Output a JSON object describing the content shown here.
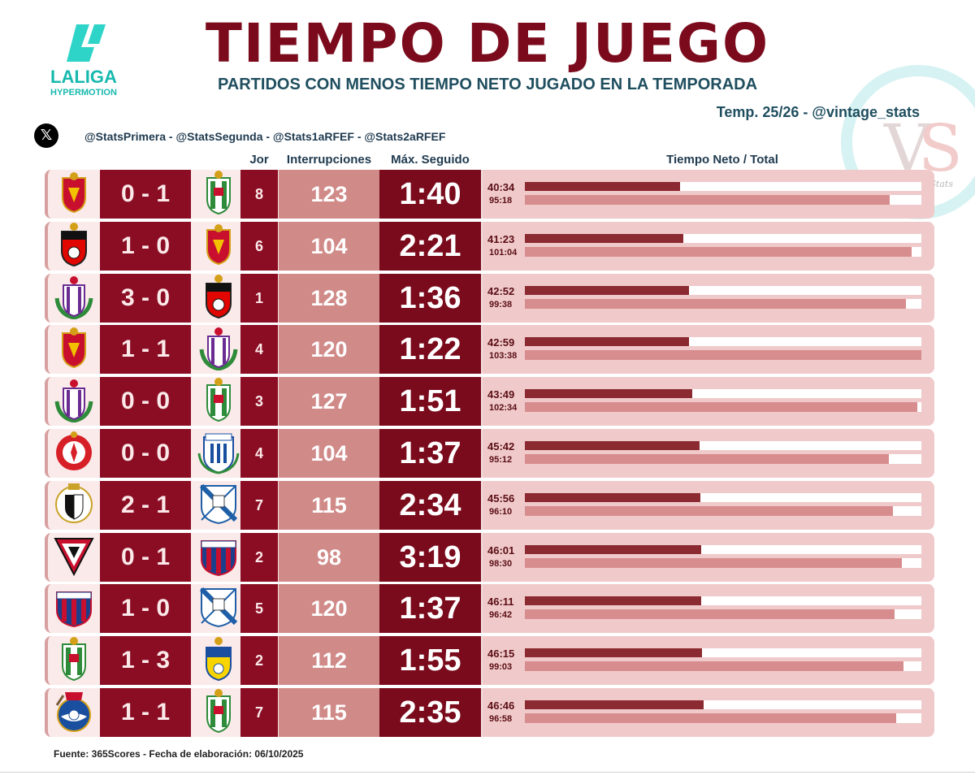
{
  "header": {
    "title": "TIEMPO DE JUEGO",
    "subtitle": "PARTIDOS CON MENOS TIEMPO NETO JUGADO EN LA TEMPORADA",
    "season": "Temp. 25/26 - @vintage_stats",
    "accounts": "@StatsPrimera - @StatsSegunda - @Stats1aRFEF - @Stats2aRFEF",
    "league_logo_text": "LALIGA",
    "league_logo_sub": "HYPERMOTION",
    "watermark_text": "Vintage.Stats"
  },
  "columns": {
    "jor": "Jor",
    "interrupciones": "Interrupciones",
    "max_seguido": "Máx. Seguido",
    "tiempo": "Tiempo Neto / Total"
  },
  "footer": "Fuente: 365Scores - Fecha de elaboración: 06/10/2025",
  "colors": {
    "primary": "#8b0d24",
    "accent": "#d08a88",
    "bar_net": "#8b2a30",
    "bar_total": "#d78d8d",
    "title": "#7b0b1c",
    "subtitle": "#1f4e5f"
  },
  "chart_data": {
    "type": "bar",
    "orientation": "horizontal",
    "series_labels": [
      "Tiempo Neto",
      "Total"
    ],
    "rows": [
      {
        "home_crest": "zaragoza-crest",
        "score": "0 - 1",
        "away_crest": "cordoba-crest",
        "jor": "8",
        "interrupciones": "123",
        "max_seguido": "1:40",
        "neto": "40:34",
        "total": "95:18",
        "neto_min": 40.57,
        "total_min": 95.3
      },
      {
        "home_crest": "ceuta-crest",
        "score": "1 - 0",
        "away_crest": "zaragoza-crest",
        "jor": "6",
        "interrupciones": "104",
        "max_seguido": "2:21",
        "neto": "41:23",
        "total": "101:04",
        "neto_min": 41.38,
        "total_min": 101.07
      },
      {
        "home_crest": "valladolid-crest",
        "score": "3 - 0",
        "away_crest": "ceuta-crest",
        "jor": "1",
        "interrupciones": "128",
        "max_seguido": "1:36",
        "neto": "42:52",
        "total": "99:38",
        "neto_min": 42.87,
        "total_min": 99.63
      },
      {
        "home_crest": "zaragoza-crest",
        "score": "1 - 1",
        "away_crest": "valladolid-crest",
        "jor": "4",
        "interrupciones": "120",
        "max_seguido": "1:22",
        "neto": "42:59",
        "total": "103:38",
        "neto_min": 42.98,
        "total_min": 103.63
      },
      {
        "home_crest": "valladolid-crest",
        "score": "0 - 0",
        "away_crest": "cordoba-crest",
        "jor": "3",
        "interrupciones": "127",
        "max_seguido": "1:51",
        "neto": "43:49",
        "total": "102:34",
        "neto_min": 43.82,
        "total_min": 102.57
      },
      {
        "home_crest": "leonesa-crest",
        "score": "0 - 0",
        "away_crest": "leganes-crest",
        "jor": "4",
        "interrupciones": "104",
        "max_seguido": "1:37",
        "neto": "45:42",
        "total": "95:12",
        "neto_min": 45.7,
        "total_min": 95.2
      },
      {
        "home_crest": "burgos-crest",
        "score": "2 - 1",
        "away_crest": "malaga-crest",
        "jor": "7",
        "interrupciones": "115",
        "max_seguido": "2:34",
        "neto": "45:56",
        "total": "96:10",
        "neto_min": 45.93,
        "total_min": 96.17
      },
      {
        "home_crest": "mirandes-crest",
        "score": "0 - 1",
        "away_crest": "huesca-crest",
        "jor": "2",
        "interrupciones": "98",
        "max_seguido": "3:19",
        "neto": "46:01",
        "total": "98:30",
        "neto_min": 46.02,
        "total_min": 98.5
      },
      {
        "home_crest": "huesca-crest",
        "score": "1 - 0",
        "away_crest": "malaga-crest",
        "jor": "5",
        "interrupciones": "120",
        "max_seguido": "1:37",
        "neto": "46:11",
        "total": "96:42",
        "neto_min": 46.18,
        "total_min": 96.7
      },
      {
        "home_crest": "cordoba-crest",
        "score": "1 - 3",
        "away_crest": "laspalmas-crest",
        "jor": "2",
        "interrupciones": "112",
        "max_seguido": "1:55",
        "neto": "46:15",
        "total": "99:03",
        "neto_min": 46.25,
        "total_min": 99.05
      },
      {
        "home_crest": "realsociedadb-crest",
        "score": "1 - 1",
        "away_crest": "cordoba-crest",
        "jor": "7",
        "interrupciones": "115",
        "max_seguido": "2:35",
        "neto": "46:46",
        "total": "96:58",
        "neto_min": 46.77,
        "total_min": 96.97
      }
    ],
    "xlim": [
      0,
      103.63
    ]
  }
}
